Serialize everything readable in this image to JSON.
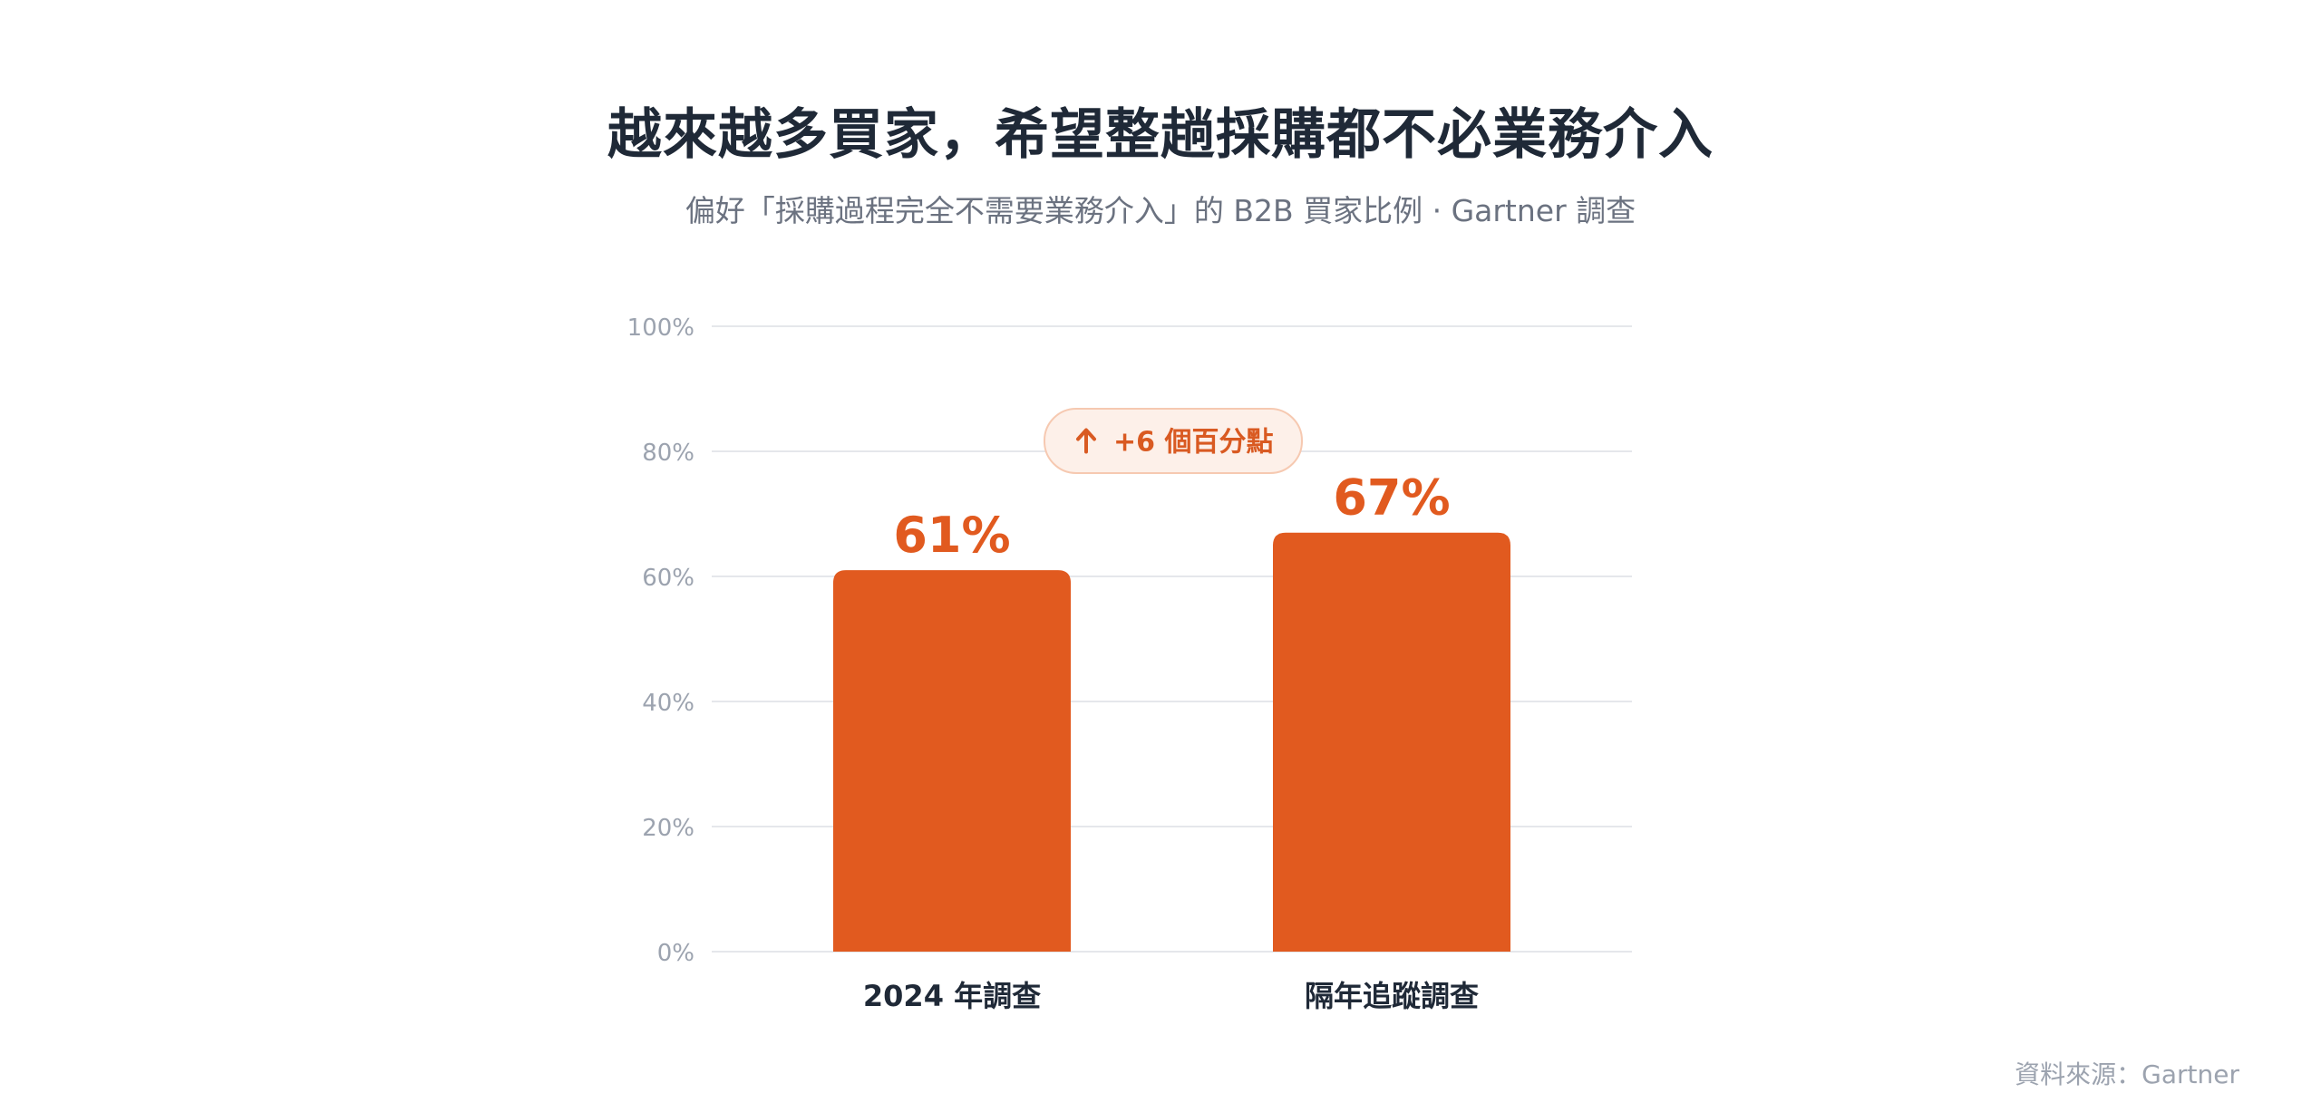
{
  "title": "越來越多買家，希望整趟採購都不必業務介入",
  "subtitle": "偏好「採購過程完全不需要業務介入」的 B2B 買家比例 · Gartner 調查",
  "source": "資料來源：Gartner",
  "chart_data": {
    "type": "bar",
    "categories": [
      "2024 年調查",
      "隔年追蹤調查"
    ],
    "values": [
      61,
      67
    ],
    "value_labels": [
      "61%",
      "67%"
    ],
    "ylim": [
      0,
      100
    ],
    "yticks": [
      0,
      20,
      40,
      60,
      80,
      100
    ],
    "ytick_labels": [
      "0%",
      "20%",
      "40%",
      "60%",
      "80%",
      "100%"
    ],
    "grid": true,
    "annotation": {
      "icon": "arrow-up-icon",
      "text": "+6 個百分點",
      "delta": 6
    },
    "colors": {
      "bar": "#e15a1f",
      "value_label": "#e15a1f",
      "grid": "#e5e7eb",
      "tick_label": "#9ca3af",
      "category_label": "#1f2937",
      "badge_bg": "#fdf0e9",
      "badge_border": "#f6c9b1",
      "badge_text": "#d95a22"
    }
  }
}
